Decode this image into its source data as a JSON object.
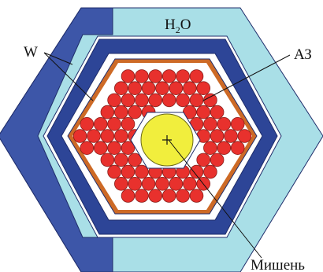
{
  "labels": {
    "water_main": "H",
    "water_sub": "2",
    "water_tail": "O",
    "tungsten": "W",
    "core": "АЗ",
    "target": "Мишень"
  },
  "colors": {
    "water": "#a9dfe7",
    "tungsten": "#3d56a8",
    "tungsten_dark": "#2d4597",
    "gap": "#ffffff",
    "shell": "#cd6a26",
    "fuel": "#e8312d",
    "fuel_edge": "#8a1e1a",
    "target": "#f1ee3d",
    "target_edge": "#6a6a1a",
    "outline": "#1f2d6b",
    "line": "#111111"
  }
}
